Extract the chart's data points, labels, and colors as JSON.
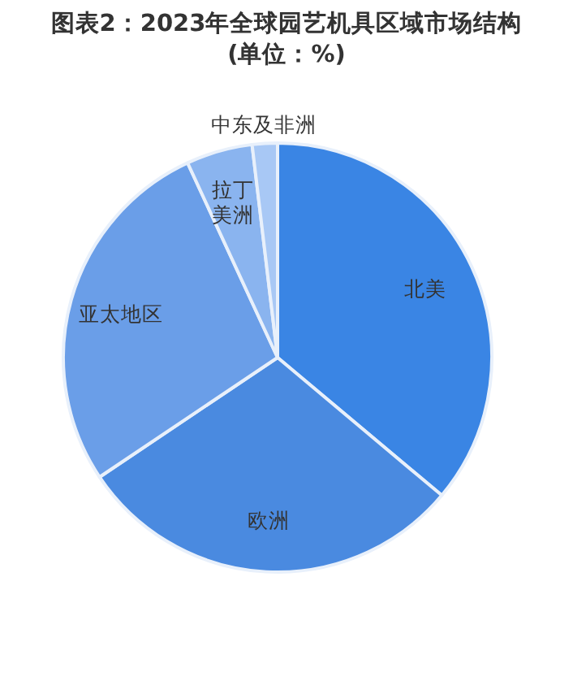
{
  "chart_data": {
    "type": "pie",
    "title": "图表2：2023年全球园艺机具区域市场结构",
    "subtitle": "(单位：%)",
    "categories": [
      "北美",
      "欧洲",
      "亚太地区",
      "拉丁美洲",
      "中东及非洲"
    ],
    "values": [
      36.1,
      29.5,
      27.5,
      5,
      1.9
    ],
    "colors": [
      "#3a85e4",
      "#4a8ae0",
      "#6a9ee8",
      "#8ab4ef",
      "#a8c8f5"
    ]
  }
}
